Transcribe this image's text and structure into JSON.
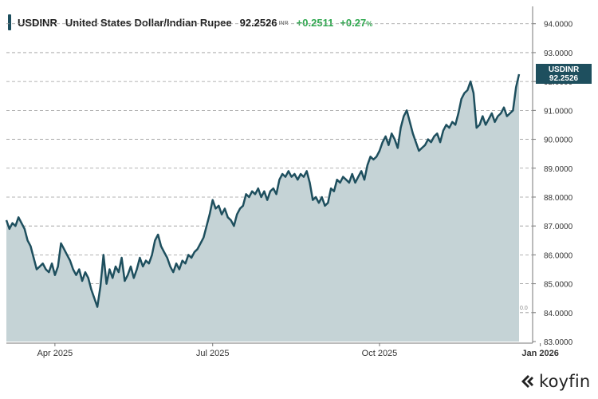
{
  "header": {
    "symbol": "USDINR",
    "name": "United States Dollar/Indian Rupee",
    "price": "92.2526",
    "unit": "INR",
    "change": "+0.2511",
    "change_pct": "+0.27",
    "pct_sign": "%"
  },
  "brand": {
    "name": "koyfin"
  },
  "colors": {
    "line": "#1e4f5e",
    "area": "#c5d3d6",
    "positive": "#2fa84f",
    "grid": "#9a9a9a"
  },
  "chart_data": {
    "type": "area",
    "title": "USDINR United States Dollar/Indian Rupee",
    "ylim": [
      83.0,
      94.6
    ],
    "y_ticks": [
      "94.0000",
      "93.0000",
      "92.0000",
      "91.0000",
      "90.0000",
      "89.0000",
      "88.0000",
      "87.0000",
      "86.0000",
      "85.0000",
      "84.0000",
      "83.0000"
    ],
    "y_tick_values": [
      94,
      93,
      92,
      91,
      90,
      89,
      88,
      87,
      86,
      85,
      84,
      83
    ],
    "x_ticks": [
      {
        "label": "Apr 2025",
        "index": 16,
        "bold": false
      },
      {
        "label": "Jul 2025",
        "index": 68,
        "bold": false
      },
      {
        "label": "Oct 2025",
        "index": 123,
        "bold": false
      },
      {
        "label": "Jan 2026",
        "index": 176,
        "bold": true
      }
    ],
    "last_label": {
      "symbol": "USDINR",
      "value": "92.2526"
    },
    "zero_label": "0.0",
    "series": [
      {
        "name": "USDINR",
        "values": [
          87.2,
          86.9,
          87.1,
          87.0,
          87.3,
          87.1,
          86.9,
          86.5,
          86.3,
          85.9,
          85.5,
          85.6,
          85.7,
          85.5,
          85.4,
          85.7,
          85.3,
          85.6,
          86.4,
          86.2,
          86.0,
          85.8,
          85.5,
          85.3,
          85.5,
          85.1,
          85.4,
          85.2,
          84.8,
          84.5,
          84.2,
          84.9,
          86.0,
          85.0,
          85.5,
          85.2,
          85.6,
          85.4,
          85.9,
          85.1,
          85.3,
          85.6,
          85.2,
          85.5,
          85.9,
          85.6,
          85.8,
          85.7,
          86.0,
          86.5,
          86.7,
          86.3,
          86.1,
          85.9,
          85.6,
          85.4,
          85.7,
          85.5,
          85.8,
          85.7,
          86.0,
          85.9,
          86.1,
          86.2,
          86.4,
          86.6,
          87.0,
          87.4,
          87.9,
          87.6,
          87.7,
          87.4,
          87.6,
          87.3,
          87.2,
          87.0,
          87.4,
          87.6,
          87.7,
          88.1,
          88.0,
          88.2,
          88.1,
          88.3,
          88.0,
          88.2,
          87.9,
          88.2,
          88.3,
          88.1,
          88.6,
          88.8,
          88.7,
          88.9,
          88.7,
          88.8,
          88.6,
          88.8,
          88.7,
          88.9,
          88.5,
          87.9,
          88.0,
          87.8,
          88.0,
          87.7,
          87.8,
          88.3,
          88.2,
          88.6,
          88.5,
          88.7,
          88.6,
          88.5,
          88.8,
          88.5,
          88.7,
          88.9,
          88.6,
          89.1,
          89.4,
          89.3,
          89.4,
          89.6,
          89.9,
          90.1,
          89.8,
          90.2,
          90.0,
          89.7,
          90.4,
          90.8,
          91.0,
          90.6,
          90.2,
          89.9,
          89.6,
          89.7,
          89.8,
          90.0,
          89.9,
          90.1,
          90.2,
          89.9,
          90.3,
          90.5,
          90.4,
          90.6,
          90.5,
          90.9,
          91.4,
          91.6,
          91.7,
          92.0,
          91.6,
          90.4,
          90.5,
          90.8,
          90.5,
          90.7,
          90.9,
          90.6,
          90.8,
          90.9,
          91.1,
          90.8,
          90.9,
          91.0,
          91.8,
          92.2526
        ]
      }
    ]
  }
}
